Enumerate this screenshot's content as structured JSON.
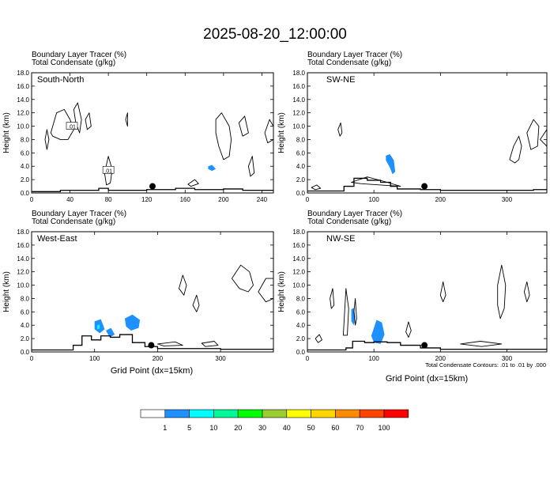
{
  "title": "2025-08-20_12:00:00",
  "contour_note": "Total Condensate Contours: .01 to .01 by .000",
  "colorbar": {
    "labels": [
      "1",
      "5",
      "10",
      "20",
      "30",
      "40",
      "50",
      "60",
      "70",
      "100"
    ],
    "colors": [
      "#ffffff",
      "#1e90ff",
      "#00ffff",
      "#00fa9a",
      "#00ff00",
      "#9acd32",
      "#ffff00",
      "#ffd700",
      "#ff8c00",
      "#ff4500",
      "#ff0000"
    ]
  },
  "chart_data": [
    {
      "type": "contour",
      "panel": "South-North",
      "header": [
        "Boundary Layer Tracer   (%)",
        "Total Condensate   (g/kg)"
      ],
      "ylabel": "Height (km)",
      "xlabel": "",
      "xlim": [
        0,
        252
      ],
      "ylim": [
        0,
        18
      ],
      "xticks": [
        0,
        40,
        80,
        120,
        160,
        200,
        240
      ],
      "yticks": [
        0.0,
        2.0,
        4.0,
        6.0,
        8.0,
        10.0,
        12.0,
        14.0,
        16.0,
        18.0
      ],
      "contour_labels": [
        {
          "x": 42,
          "y": 10.0,
          "text": ".01"
        },
        {
          "x": 80,
          "y": 3.4,
          "text": ".01"
        }
      ],
      "condensate_blobs": [
        [
          [
            20,
            9
          ],
          [
            26,
            12
          ],
          [
            34,
            12.5
          ],
          [
            40,
            11
          ],
          [
            44,
            9.5
          ],
          [
            38,
            8
          ],
          [
            30,
            8
          ],
          [
            22,
            8.5
          ]
        ],
        [
          [
            44,
            12.5
          ],
          [
            48,
            13.5
          ],
          [
            52,
            11
          ],
          [
            50,
            9
          ],
          [
            46,
            10.5
          ]
        ],
        [
          [
            56,
            11
          ],
          [
            60,
            12
          ],
          [
            62,
            10
          ],
          [
            58,
            9.5
          ]
        ],
        [
          [
            14,
            8
          ],
          [
            16,
            9.5
          ],
          [
            18,
            8
          ],
          [
            16,
            6.5
          ]
        ],
        [
          [
            76,
            3
          ],
          [
            80,
            5.5
          ],
          [
            84,
            3.5
          ],
          [
            82,
            1.5
          ],
          [
            78,
            1.2
          ]
        ],
        [
          [
            98,
            11
          ],
          [
            100,
            12
          ],
          [
            100,
            10
          ]
        ],
        [
          [
            192,
            11
          ],
          [
            198,
            12
          ],
          [
            206,
            10
          ],
          [
            208,
            8
          ],
          [
            206,
            5.5
          ],
          [
            200,
            5
          ],
          [
            195,
            7
          ],
          [
            192,
            9
          ]
        ],
        [
          [
            216,
            10.5
          ],
          [
            222,
            11.5
          ],
          [
            226,
            9
          ],
          [
            220,
            8.5
          ]
        ],
        [
          [
            226,
            4
          ],
          [
            230,
            5.5
          ],
          [
            232,
            3
          ],
          [
            228,
            2.5
          ]
        ],
        [
          [
            243,
            9
          ],
          [
            248,
            11
          ],
          [
            252,
            10
          ],
          [
            252,
            8
          ],
          [
            246,
            7.5
          ]
        ],
        [
          [
            163,
            1.3
          ],
          [
            170,
            2
          ],
          [
            174,
            1.4
          ],
          [
            166,
            1
          ]
        ]
      ],
      "tracer_blobs": [
        {
          "level": "1-5",
          "pts": [
            [
              184,
              4.0
            ],
            [
              188,
              4.2
            ],
            [
              192,
              3.6
            ],
            [
              188,
              3.3
            ],
            [
              184,
              3.6
            ]
          ]
        }
      ],
      "terrain": [
        [
          0,
          0.2
        ],
        [
          30,
          0.2
        ],
        [
          30,
          0.4
        ],
        [
          60,
          0.4
        ],
        [
          70,
          0.7
        ],
        [
          80,
          0.4
        ],
        [
          110,
          0.4
        ],
        [
          120,
          0.5
        ],
        [
          150,
          0.7
        ],
        [
          170,
          0.5
        ],
        [
          200,
          0.6
        ],
        [
          220,
          0.4
        ],
        [
          252,
          0.5
        ]
      ],
      "marker": {
        "x": 126,
        "y": 1.0
      }
    },
    {
      "type": "contour",
      "panel": "SW-NE",
      "header": [
        "Boundary Layer Tracer   (%)",
        "Total Condensate   (g/kg)"
      ],
      "ylabel": "Height (km)",
      "xlabel": "",
      "xlim": [
        0,
        360
      ],
      "ylim": [
        0,
        18
      ],
      "xticks": [
        0,
        100,
        200,
        300
      ],
      "yticks": [
        0.0,
        2.0,
        4.0,
        6.0,
        8.0,
        10.0,
        12.0,
        14.0,
        16.0,
        18.0
      ],
      "contour_labels": [],
      "condensate_blobs": [
        [
          [
            46,
            9.5
          ],
          [
            50,
            10.5
          ],
          [
            52,
            9
          ],
          [
            49,
            8.5
          ]
        ],
        [
          [
            304,
            5
          ],
          [
            310,
            7
          ],
          [
            318,
            8.5
          ],
          [
            322,
            7
          ],
          [
            318,
            5
          ],
          [
            312,
            4.5
          ]
        ],
        [
          [
            330,
            9
          ],
          [
            340,
            11
          ],
          [
            348,
            10
          ],
          [
            346,
            7
          ],
          [
            336,
            6.5
          ]
        ],
        [
          [
            350,
            8
          ],
          [
            360,
            9.5
          ],
          [
            360,
            7
          ]
        ],
        [
          [
            6,
            0.8
          ],
          [
            14,
            1.2
          ],
          [
            20,
            0.7
          ],
          [
            12,
            0.5
          ]
        ],
        [
          [
            66,
            1.6
          ],
          [
            90,
            2.4
          ],
          [
            120,
            1.6
          ],
          [
            140,
            1.0
          ],
          [
            110,
            1.2
          ],
          [
            80,
            1.4
          ]
        ]
      ],
      "tracer_blobs": [
        {
          "level": "1-5",
          "pts": [
            [
              118,
              5.6
            ],
            [
              124,
              5.8
            ],
            [
              130,
              4.9
            ],
            [
              132,
              3.2
            ],
            [
              128,
              2.8
            ],
            [
              124,
              3.8
            ],
            [
              118,
              4.9
            ]
          ]
        }
      ],
      "terrain": [
        [
          0,
          0.3
        ],
        [
          40,
          0.3
        ],
        [
          55,
          1.0
        ],
        [
          70,
          2.2
        ],
        [
          90,
          1.9
        ],
        [
          110,
          1.6
        ],
        [
          125,
          1.0
        ],
        [
          135,
          0.6
        ],
        [
          170,
          0.5
        ],
        [
          200,
          0.4
        ],
        [
          260,
          0.4
        ],
        [
          300,
          0.4
        ],
        [
          340,
          0.5
        ],
        [
          360,
          0.6
        ]
      ],
      "marker": {
        "x": 176,
        "y": 1.0
      }
    },
    {
      "type": "contour",
      "panel": "West-East",
      "header": [
        "Boundary Layer Tracer   (%)",
        "Total Condensate   (g/kg)"
      ],
      "ylabel": "Height (km)",
      "xlabel": "Grid Point (dx=15km)",
      "xlim": [
        0,
        384
      ],
      "ylim": [
        0,
        18
      ],
      "xticks": [
        0,
        100,
        200,
        300
      ],
      "yticks": [
        0.0,
        2.0,
        4.0,
        6.0,
        8.0,
        10.0,
        12.0,
        14.0,
        16.0,
        18.0
      ],
      "contour_labels": [],
      "condensate_blobs": [
        [
          [
            234,
            9.5
          ],
          [
            240,
            11.5
          ],
          [
            246,
            10
          ],
          [
            242,
            8.5
          ]
        ],
        [
          [
            256,
            7
          ],
          [
            262,
            8.5
          ],
          [
            266,
            7
          ],
          [
            262,
            6
          ]
        ],
        [
          [
            318,
            11
          ],
          [
            332,
            13
          ],
          [
            346,
            12
          ],
          [
            352,
            10
          ],
          [
            344,
            9
          ],
          [
            330,
            9.5
          ]
        ],
        [
          [
            360,
            9
          ],
          [
            372,
            11
          ],
          [
            384,
            11
          ],
          [
            384,
            8
          ],
          [
            372,
            7.5
          ]
        ],
        [
          [
            200,
            1.2
          ],
          [
            228,
            1.5
          ],
          [
            240,
            1.0
          ],
          [
            210,
            0.9
          ]
        ],
        [
          [
            270,
            1.3
          ],
          [
            290,
            1.6
          ],
          [
            296,
            1.0
          ],
          [
            276,
            0.8
          ]
        ]
      ],
      "tracer_blobs": [
        {
          "level": "1-5",
          "pts": [
            [
              100,
              4.6
            ],
            [
              110,
              4.9
            ],
            [
              116,
              3.4
            ],
            [
              108,
              2.8
            ],
            [
              100,
              3.4
            ]
          ]
        },
        {
          "level": "5-10",
          "pts": [
            [
              104,
              4.0
            ],
            [
              108,
              4.1
            ],
            [
              108,
              3.5
            ],
            [
              104,
              3.4
            ]
          ]
        },
        {
          "level": "1-5",
          "pts": [
            [
              118,
              3.2
            ],
            [
              126,
              3.6
            ],
            [
              132,
              2.6
            ],
            [
              124,
              2.2
            ]
          ]
        },
        {
          "level": "1-5",
          "pts": [
            [
              148,
              5.0
            ],
            [
              160,
              5.6
            ],
            [
              172,
              4.8
            ],
            [
              170,
              3.6
            ],
            [
              158,
              3.2
            ],
            [
              150,
              3.8
            ]
          ]
        }
      ],
      "terrain": [
        [
          0,
          0.3
        ],
        [
          50,
          0.3
        ],
        [
          66,
          1.0
        ],
        [
          80,
          2.4
        ],
        [
          95,
          1.8
        ],
        [
          110,
          2.4
        ],
        [
          125,
          2.2
        ],
        [
          140,
          2.6
        ],
        [
          160,
          1.4
        ],
        [
          180,
          0.8
        ],
        [
          200,
          0.5
        ],
        [
          260,
          0.5
        ],
        [
          300,
          0.4
        ],
        [
          340,
          0.4
        ],
        [
          384,
          0.6
        ]
      ],
      "marker": {
        "x": 190,
        "y": 1.0
      }
    },
    {
      "type": "contour",
      "panel": "NW-SE",
      "header": [
        "Boundary Layer Tracer   (%)",
        "Total Condensate   (g/kg)"
      ],
      "ylabel": "Height (km)",
      "xlabel": "Grid Point (dx=15km)",
      "xlim": [
        0,
        360
      ],
      "ylim": [
        0,
        18
      ],
      "xticks": [
        0,
        100,
        200,
        300
      ],
      "yticks": [
        0.0,
        2.0,
        4.0,
        6.0,
        8.0,
        10.0,
        12.0,
        14.0,
        16.0,
        18.0
      ],
      "contour_labels": [],
      "condensate_blobs": [
        [
          [
            54,
            2.5
          ],
          [
            58,
            9.5
          ],
          [
            62,
            6.5
          ],
          [
            60,
            2.5
          ]
        ],
        [
          [
            70,
            6
          ],
          [
            72,
            8
          ],
          [
            74,
            5
          ],
          [
            72,
            4
          ]
        ],
        [
          [
            34,
            8
          ],
          [
            38,
            9.5
          ],
          [
            40,
            7
          ],
          [
            36,
            6.5
          ]
        ],
        [
          [
            286,
            10
          ],
          [
            292,
            13
          ],
          [
            298,
            10
          ],
          [
            296,
            6.5
          ],
          [
            290,
            5
          ],
          [
            286,
            7
          ]
        ],
        [
          [
            326,
            9
          ],
          [
            330,
            10.5
          ],
          [
            334,
            8.5
          ],
          [
            330,
            7.5
          ]
        ],
        [
          [
            200,
            8.5
          ],
          [
            204,
            10.5
          ],
          [
            208,
            8.5
          ],
          [
            204,
            7.5
          ]
        ],
        [
          [
            148,
            3
          ],
          [
            152,
            4.5
          ],
          [
            156,
            3.2
          ],
          [
            152,
            2.2
          ]
        ],
        [
          [
            12,
            2
          ],
          [
            18,
            2.6
          ],
          [
            22,
            1.8
          ],
          [
            16,
            1.4
          ]
        ],
        [
          [
            230,
            1.2
          ],
          [
            260,
            1.6
          ],
          [
            292,
            1.2
          ],
          [
            262,
            0.8
          ]
        ]
      ],
      "tracer_blobs": [
        {
          "level": "1-5",
          "pts": [
            [
              66,
              6.4
            ],
            [
              70,
              6.6
            ],
            [
              72,
              5.2
            ],
            [
              70,
              4.0
            ],
            [
              66,
              4.6
            ]
          ]
        },
        {
          "level": "1-5",
          "pts": [
            [
              96,
              2.4
            ],
            [
              104,
              4.8
            ],
            [
              112,
              4.4
            ],
            [
              116,
              2.6
            ],
            [
              110,
              1.2
            ],
            [
              100,
              1.4
            ]
          ]
        }
      ],
      "terrain": [
        [
          0,
          0.3
        ],
        [
          40,
          0.3
        ],
        [
          58,
          0.6
        ],
        [
          68,
          1.6
        ],
        [
          86,
          1.4
        ],
        [
          100,
          1.5
        ],
        [
          120,
          1.4
        ],
        [
          140,
          1.0
        ],
        [
          170,
          0.6
        ],
        [
          200,
          0.4
        ],
        [
          260,
          0.4
        ],
        [
          300,
          0.4
        ],
        [
          360,
          0.5
        ]
      ],
      "marker": {
        "x": 176,
        "y": 1.0
      }
    }
  ]
}
